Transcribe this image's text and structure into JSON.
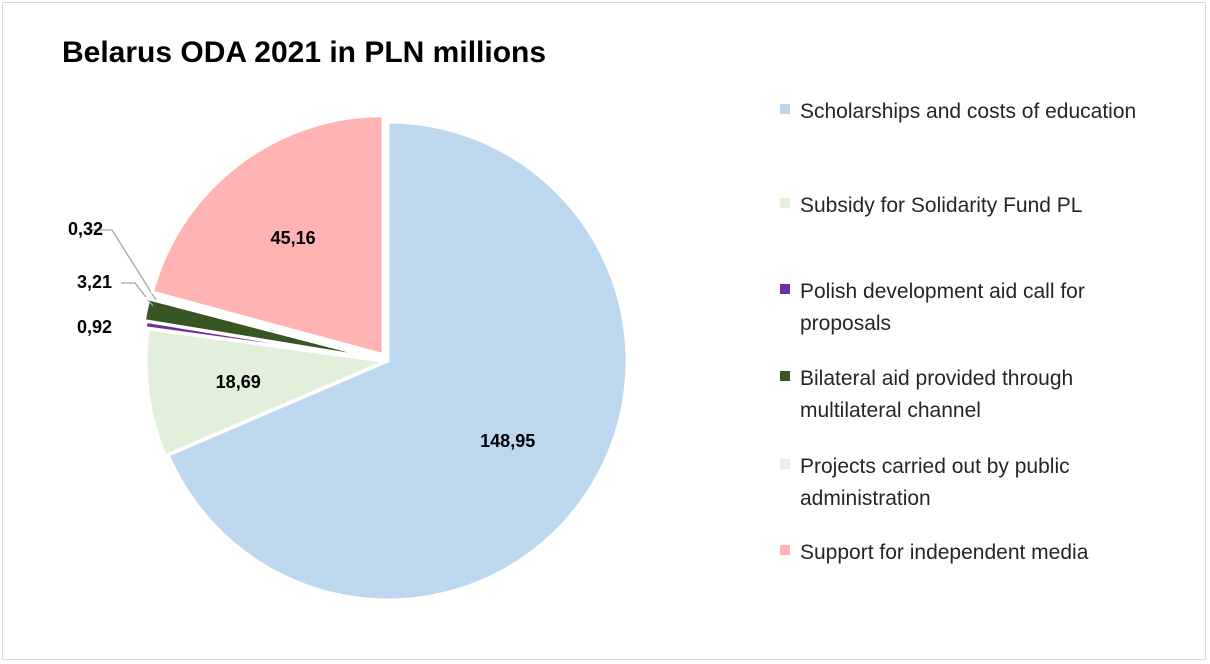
{
  "chart_data": {
    "type": "pie",
    "title": "Belarus ODA 2021 in PLN millions",
    "start_angle_deg": 0,
    "direction": "clockwise",
    "slices": [
      {
        "label": "Scholarships and costs of education",
        "value": 148.95,
        "value_label": "148,95",
        "color": "#bdd7ee",
        "label_style": "inside"
      },
      {
        "label": "Subsidy for Solidarity Fund PL",
        "value": 18.69,
        "value_label": "18,69",
        "color": "#e2efda",
        "label_style": "inside"
      },
      {
        "label": "Polish development aid call for proposals",
        "value": 0.92,
        "value_label": "0,92",
        "color": "#7030a0",
        "label_style": "outside"
      },
      {
        "label": "Bilateral aid provided through multilateral channel",
        "value": 3.21,
        "value_label": "3,21",
        "color": "#375623",
        "label_style": "leader"
      },
      {
        "label": "Projects carried out by public administration",
        "value": 0.32,
        "value_label": "0,32",
        "color": "#ededed",
        "label_style": "leader"
      },
      {
        "label": "Support for independent media",
        "value": 45.16,
        "value_label": "45,16",
        "color": "#ffb3b3",
        "label_style": "inside"
      }
    ],
    "legend_position": "right"
  }
}
